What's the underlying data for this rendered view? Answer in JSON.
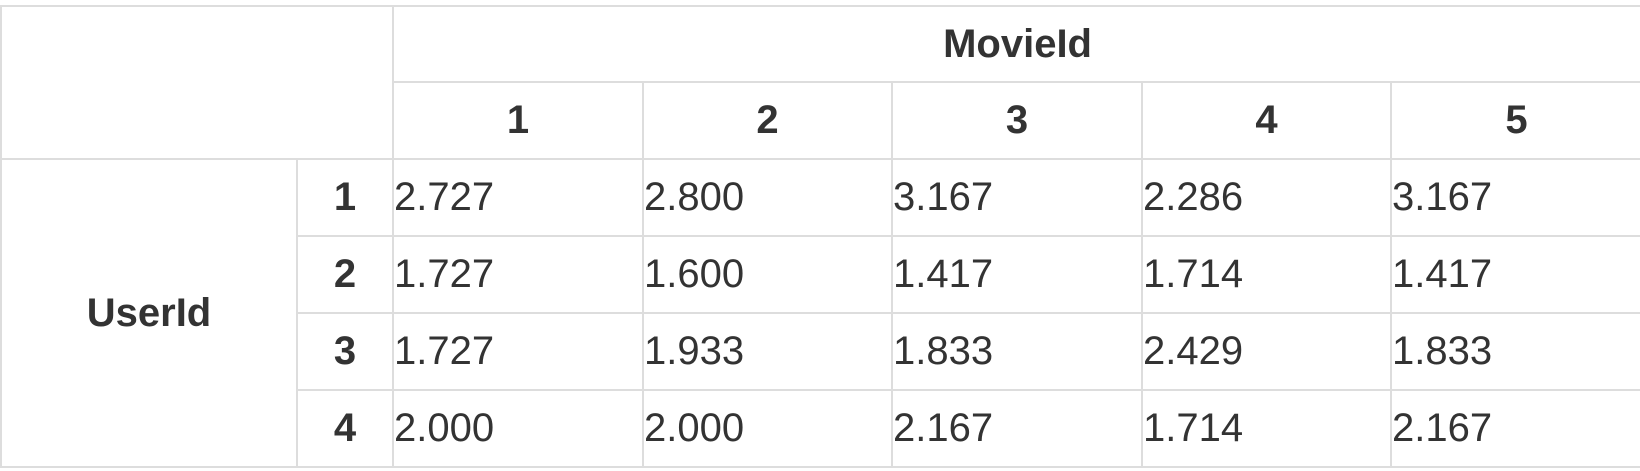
{
  "table": {
    "column_group_label": "MovieId",
    "row_group_label": "UserId",
    "columns": [
      "1",
      "2",
      "3",
      "4",
      "5"
    ],
    "rows": [
      {
        "label": "1",
        "values": [
          "2.727",
          "2.800",
          "3.167",
          "2.286",
          "3.167"
        ]
      },
      {
        "label": "2",
        "values": [
          "1.727",
          "1.600",
          "1.417",
          "1.714",
          "1.417"
        ]
      },
      {
        "label": "3",
        "values": [
          "1.727",
          "1.933",
          "1.833",
          "2.429",
          "1.833"
        ]
      },
      {
        "label": "4",
        "values": [
          "2.000",
          "2.000",
          "2.167",
          "1.714",
          "2.167"
        ]
      }
    ]
  },
  "colors": {
    "text": "#333333",
    "border": "#dddddd",
    "background": "#ffffff"
  }
}
